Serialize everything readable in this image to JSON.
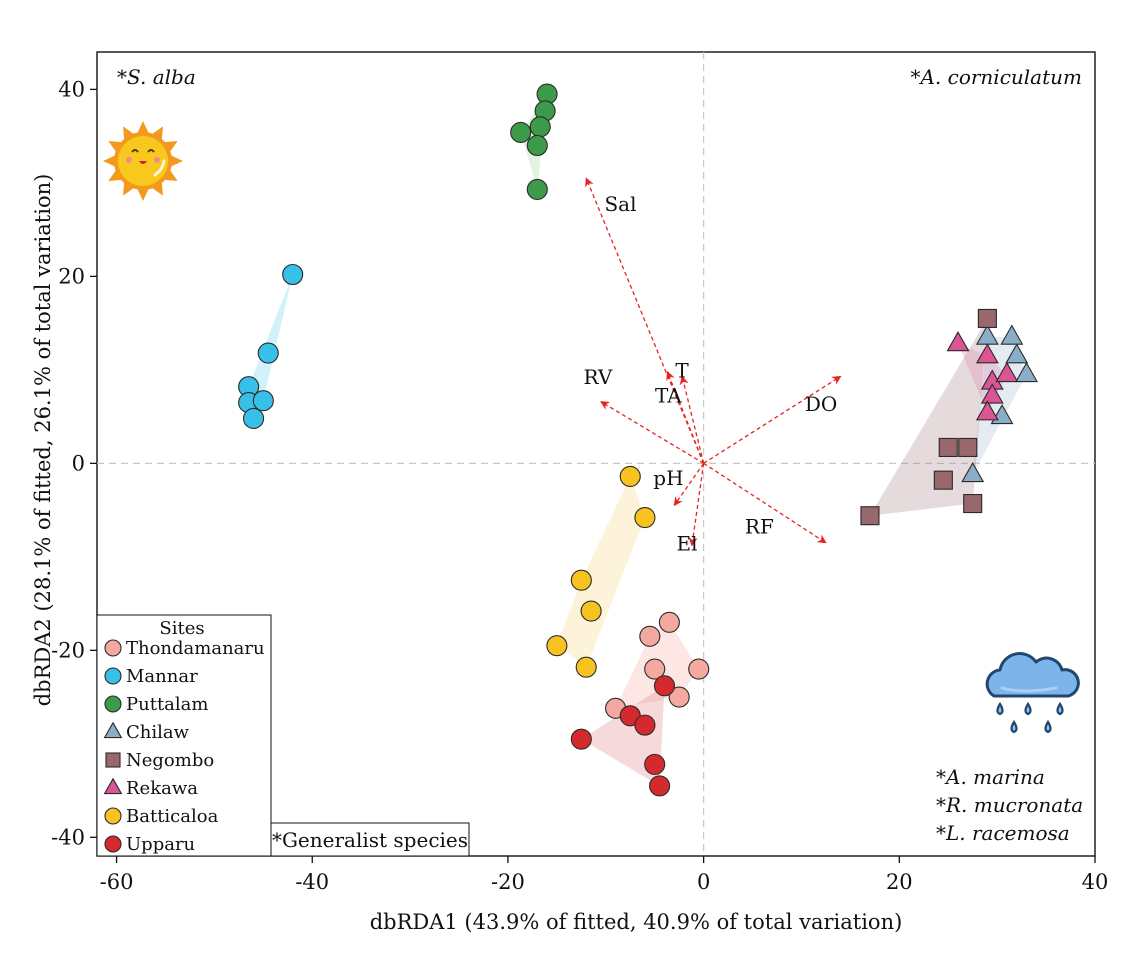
{
  "chart_data": {
    "type": "scatter",
    "title": "",
    "xlabel": "dbRDA1 (43.9% of fitted, 40.9% of total variation)",
    "ylabel": "dbRDA2 (28.1% of fitted, 26.1% of total variation)",
    "xlim": [
      -62,
      40
    ],
    "ylim": [
      -42,
      44
    ],
    "xticks": [
      -60,
      -40,
      -20,
      0,
      20,
      40
    ],
    "yticks": [
      -40,
      -20,
      0,
      20,
      40
    ],
    "xtick_labels": [
      "-60",
      "-40",
      "-20",
      "0",
      "20",
      "40"
    ],
    "ytick_labels": [
      "-40",
      "-20",
      "0",
      "20",
      "40"
    ],
    "grid": false,
    "zero_lines": true,
    "legend": {
      "title": "Sites",
      "placement": "bottom-left"
    },
    "series": [
      {
        "name": "Thondamanaru",
        "marker": "circle",
        "color": "#F4A9A0",
        "hull_color": "#F4A9A0",
        "points": [
          [
            -5.5,
            -18.5
          ],
          [
            -3.5,
            -17
          ],
          [
            -5,
            -22
          ],
          [
            -0.5,
            -22
          ],
          [
            -2.5,
            -25
          ],
          [
            -9,
            -26.2
          ]
        ]
      },
      {
        "name": "Mannar",
        "marker": "circle",
        "color": "#38C0E8",
        "hull_color": "#5CCCEE",
        "points": [
          [
            -42,
            20.2
          ],
          [
            -44.5,
            11.8
          ],
          [
            -46.5,
            8.2
          ],
          [
            -46.5,
            6.5
          ],
          [
            -45,
            6.7
          ],
          [
            -46,
            4.8
          ]
        ]
      },
      {
        "name": "Puttalam",
        "marker": "circle",
        "color": "#3D9A4A",
        "hull_color": "#9CD08C",
        "points": [
          [
            -16,
            39.5
          ],
          [
            -16.2,
            37.7
          ],
          [
            -16.7,
            36
          ],
          [
            -18.7,
            35.4
          ],
          [
            -17,
            34
          ],
          [
            -17,
            29.3
          ]
        ]
      },
      {
        "name": "Chilaw",
        "marker": "triangle",
        "color": "#8AAEC8",
        "hull_color": "#9FB8CC",
        "points": [
          [
            29,
            13.5
          ],
          [
            31.5,
            13.5
          ],
          [
            32,
            11.5
          ],
          [
            33,
            9.5
          ],
          [
            30.5,
            5
          ],
          [
            27.5,
            -1.2
          ]
        ]
      },
      {
        "name": "Negombo",
        "marker": "square",
        "color": "#98686C",
        "hull_color": "#A57E80",
        "points": [
          [
            29,
            15.5
          ],
          [
            25,
            1.7
          ],
          [
            27,
            1.7
          ],
          [
            24.5,
            -1.8
          ],
          [
            27.5,
            -4.3
          ],
          [
            17,
            -5.6
          ]
        ]
      },
      {
        "name": "Rekawa",
        "marker": "triangle",
        "color": "#DB5494",
        "hull_color": "#E07AA8",
        "points": [
          [
            26,
            12.8
          ],
          [
            29,
            11.5
          ],
          [
            29.5,
            8.7
          ],
          [
            31,
            9.5
          ],
          [
            29.5,
            7.2
          ],
          [
            29,
            5.4
          ]
        ]
      },
      {
        "name": "Batticaloa",
        "marker": "circle",
        "color": "#F6C320",
        "hull_color": "#F8D57A",
        "points": [
          [
            -7.5,
            -1.4
          ],
          [
            -6,
            -5.8
          ],
          [
            -12.5,
            -12.5
          ],
          [
            -11.5,
            -15.8
          ],
          [
            -15,
            -19.5
          ],
          [
            -12,
            -21.8
          ]
        ]
      },
      {
        "name": "Upparu",
        "marker": "circle",
        "color": "#D42A2E",
        "hull_color": "#E07A7C",
        "points": [
          [
            -4,
            -23.8
          ],
          [
            -7.5,
            -27
          ],
          [
            -6,
            -28
          ],
          [
            -12.5,
            -29.5
          ],
          [
            -5,
            -32.2
          ],
          [
            -4.5,
            -34.5
          ]
        ]
      }
    ],
    "vectors": [
      {
        "name": "Sal",
        "end": [
          -12,
          30.5
        ],
        "label_at": [
          -8.5,
          27
        ]
      },
      {
        "name": "T",
        "end": [
          -2.2,
          9.3
        ],
        "label_at": [
          -2.2,
          9.2
        ]
      },
      {
        "name": "TA",
        "end": [
          -3.7,
          9.8
        ],
        "label_at": [
          -3.6,
          6.5
        ]
      },
      {
        "name": "RV",
        "end": [
          -10.5,
          6.6
        ],
        "label_at": [
          -10.8,
          8.5
        ]
      },
      {
        "name": "DO",
        "end": [
          14,
          9.3
        ],
        "label_at": [
          12,
          5.6
        ]
      },
      {
        "name": "pH",
        "end": [
          -3,
          -4.5
        ],
        "label_at": [
          -3.6,
          -2.3
        ]
      },
      {
        "name": "El",
        "end": [
          -1.2,
          -8.8
        ],
        "label_at": [
          -1.7,
          -9.3
        ]
      },
      {
        "name": "RF",
        "end": [
          12.5,
          -8.5
        ],
        "label_at": [
          5.7,
          -7.5
        ]
      }
    ],
    "vector_color": "#E8231F",
    "annotations": [
      {
        "text": "*S. alba",
        "italic": true,
        "position": "top-left"
      },
      {
        "text": "*A. corniculatum",
        "italic": true,
        "position": "top-right"
      },
      {
        "text": "*A. marina",
        "italic": true,
        "position": "bottom-right"
      },
      {
        "text": "*R. mucronata",
        "italic": true,
        "position": "bottom-right"
      },
      {
        "text": "*L. racemosa",
        "italic": true,
        "position": "bottom-right"
      },
      {
        "text": "*Generalist species",
        "italic": false,
        "position": "bottom-center-left"
      }
    ]
  },
  "icons": {
    "sun": "sun-icon",
    "rain": "rain-cloud-icon"
  }
}
